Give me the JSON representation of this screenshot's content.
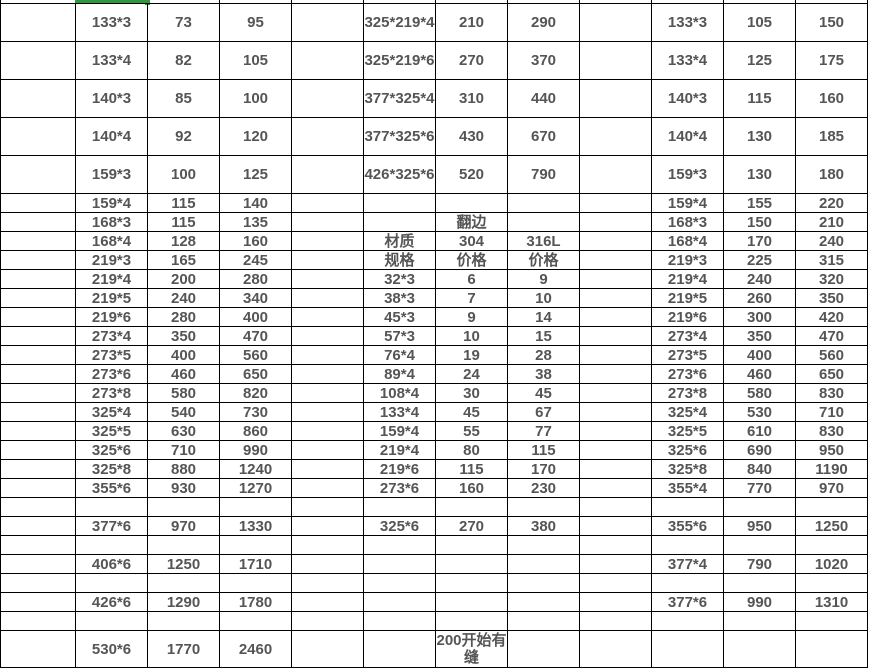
{
  "sheet": {
    "selection_color": "#2e9a3a",
    "text_color": "#555555",
    "rows": [
      [
        "",
        "133*3",
        "73",
        "95",
        "",
        "325*219*4",
        "210",
        "290",
        "",
        "133*3",
        "105",
        "150"
      ],
      [
        "",
        "133*4",
        "82",
        "105",
        "",
        "325*219*6",
        "270",
        "370",
        "",
        "133*4",
        "125",
        "175"
      ],
      [
        "",
        "140*3",
        "85",
        "100",
        "",
        "377*325*4",
        "310",
        "440",
        "",
        "140*3",
        "115",
        "160"
      ],
      [
        "",
        "140*4",
        "92",
        "120",
        "",
        "377*325*6",
        "430",
        "670",
        "",
        "140*4",
        "130",
        "185"
      ],
      [
        "",
        "159*3",
        "100",
        "125",
        "",
        "426*325*6",
        "520",
        "790",
        "",
        "159*3",
        "130",
        "180"
      ],
      [
        "",
        "159*4",
        "115",
        "140",
        "",
        "",
        "",
        "",
        "",
        "159*4",
        "155",
        "220"
      ],
      [
        "",
        "168*3",
        "115",
        "135",
        "",
        "",
        "翻边",
        "",
        "",
        "168*3",
        "150",
        "210"
      ],
      [
        "",
        "168*4",
        "128",
        "160",
        "",
        "材质",
        "304",
        "316L",
        "",
        "168*4",
        "170",
        "240"
      ],
      [
        "",
        "219*3",
        "165",
        "245",
        "",
        "规格",
        "价格",
        "价格",
        "",
        "219*3",
        "225",
        "315"
      ],
      [
        "",
        "219*4",
        "200",
        "280",
        "",
        "32*3",
        "6",
        "9",
        "",
        "219*4",
        "240",
        "320"
      ],
      [
        "",
        "219*5",
        "240",
        "340",
        "",
        "38*3",
        "7",
        "10",
        "",
        "219*5",
        "260",
        "350"
      ],
      [
        "",
        "219*6",
        "280",
        "400",
        "",
        "45*3",
        "9",
        "14",
        "",
        "219*6",
        "300",
        "420"
      ],
      [
        "",
        "273*4",
        "350",
        "470",
        "",
        "57*3",
        "10",
        "15",
        "",
        "273*4",
        "350",
        "470"
      ],
      [
        "",
        "273*5",
        "400",
        "560",
        "",
        "76*4",
        "19",
        "28",
        "",
        "273*5",
        "400",
        "560"
      ],
      [
        "",
        "273*6",
        "460",
        "650",
        "",
        "89*4",
        "24",
        "38",
        "",
        "273*6",
        "460",
        "650"
      ],
      [
        "",
        "273*8",
        "580",
        "820",
        "",
        "108*4",
        "30",
        "45",
        "",
        "273*8",
        "580",
        "830"
      ],
      [
        "",
        "325*4",
        "540",
        "730",
        "",
        "133*4",
        "45",
        "67",
        "",
        "325*4",
        "530",
        "710"
      ],
      [
        "",
        "325*5",
        "630",
        "860",
        "",
        "159*4",
        "55",
        "77",
        "",
        "325*5",
        "610",
        "830"
      ],
      [
        "",
        "325*6",
        "710",
        "990",
        "",
        "219*4",
        "80",
        "115",
        "",
        "325*6",
        "690",
        "950"
      ],
      [
        "",
        "325*8",
        "880",
        "1240",
        "",
        "219*6",
        "115",
        "170",
        "",
        "325*8",
        "840",
        "1190"
      ],
      [
        "",
        "355*6",
        "930",
        "1270",
        "",
        "273*6",
        "160",
        "230",
        "",
        "355*4",
        "770",
        "970"
      ],
      [
        "",
        "",
        "",
        "",
        "",
        "",
        "",
        "",
        "",
        "",
        "",
        ""
      ],
      [
        "",
        "377*6",
        "970",
        "1330",
        "",
        "325*6",
        "270",
        "380",
        "",
        "355*6",
        "950",
        "1250"
      ],
      [
        "",
        "",
        "",
        "",
        "",
        "",
        "",
        "",
        "",
        "",
        "",
        ""
      ],
      [
        "",
        "406*6",
        "1250",
        "1710",
        "",
        "",
        "",
        "",
        "",
        "377*4",
        "790",
        "1020"
      ],
      [
        "",
        "",
        "",
        "",
        "",
        "",
        "",
        "",
        "",
        "",
        "",
        ""
      ],
      [
        "",
        "426*6",
        "1290",
        "1780",
        "",
        "",
        "",
        "",
        "",
        "377*6",
        "990",
        "1310"
      ],
      [
        "",
        "",
        "",
        "",
        "",
        "",
        "",
        "",
        "",
        "",
        "",
        ""
      ],
      [
        "",
        "530*6",
        "1770",
        "2460",
        "",
        "",
        "200开始有缝",
        "",
        "",
        "",
        "",
        ""
      ]
    ]
  }
}
